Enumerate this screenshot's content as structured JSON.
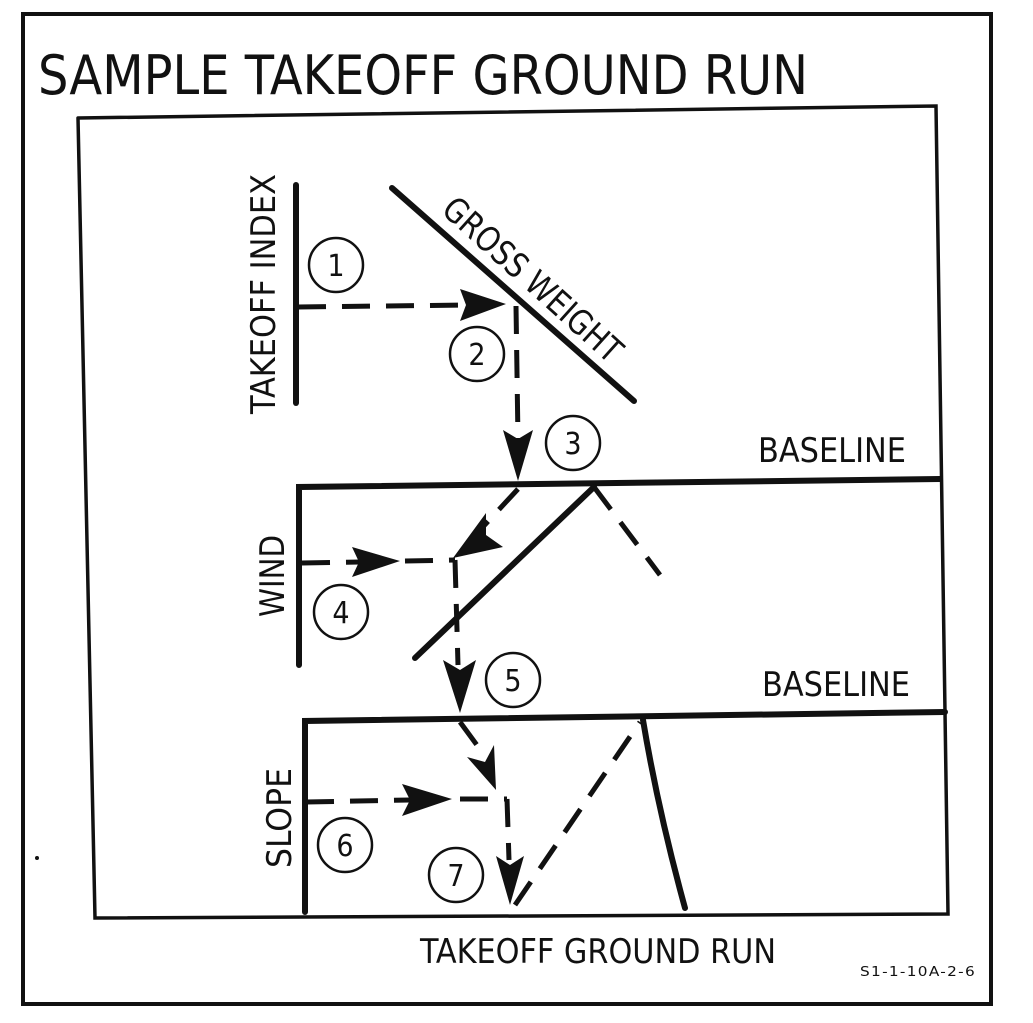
{
  "title": "SAMPLE TAKEOFF GROUND RUN",
  "scales": {
    "takeoff_index": "TAKEOFF INDEX",
    "gross_weight": "GROSS WEIGHT",
    "wind": "WIND",
    "slope": "SLOPE",
    "takeoff_ground_run": "TAKEOFF GROUND RUN"
  },
  "baselines": [
    "BASELINE",
    "BASELINE"
  ],
  "steps": [
    "1",
    "2",
    "3",
    "4",
    "5",
    "6",
    "7"
  ],
  "figure_code": "S1-1-10A-2-6",
  "colors": {
    "ink": "#111111",
    "paper": "#ffffff"
  }
}
